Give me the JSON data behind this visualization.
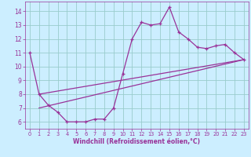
{
  "x": [
    0,
    1,
    2,
    3,
    4,
    5,
    6,
    7,
    8,
    9,
    10,
    11,
    12,
    13,
    14,
    15,
    16,
    17,
    18,
    19,
    20,
    21,
    22,
    23
  ],
  "y_curve": [
    11,
    8,
    7.2,
    6.7,
    6.0,
    6.0,
    6.0,
    6.2,
    6.2,
    7.0,
    9.5,
    12.0,
    13.2,
    13.0,
    13.1,
    14.3,
    12.5,
    12.0,
    11.4,
    11.3,
    11.5,
    11.6,
    11.0,
    10.5
  ],
  "line1_x": [
    1,
    23
  ],
  "line1_y": [
    8.0,
    10.5
  ],
  "line2_x": [
    1,
    23
  ],
  "line2_y": [
    7.0,
    10.5
  ],
  "line_color": "#993399",
  "bg_color": "#cceeff",
  "grid_color": "#99cccc",
  "axis_color": "#993399",
  "xlabel": "Windchill (Refroidissement éolien,°C)",
  "ylim": [
    5.5,
    14.7
  ],
  "xlim": [
    -0.5,
    23.5
  ],
  "yticks": [
    6,
    7,
    8,
    9,
    10,
    11,
    12,
    13,
    14
  ],
  "xticks": [
    0,
    1,
    2,
    3,
    4,
    5,
    6,
    7,
    8,
    9,
    10,
    11,
    12,
    13,
    14,
    15,
    16,
    17,
    18,
    19,
    20,
    21,
    22,
    23
  ]
}
